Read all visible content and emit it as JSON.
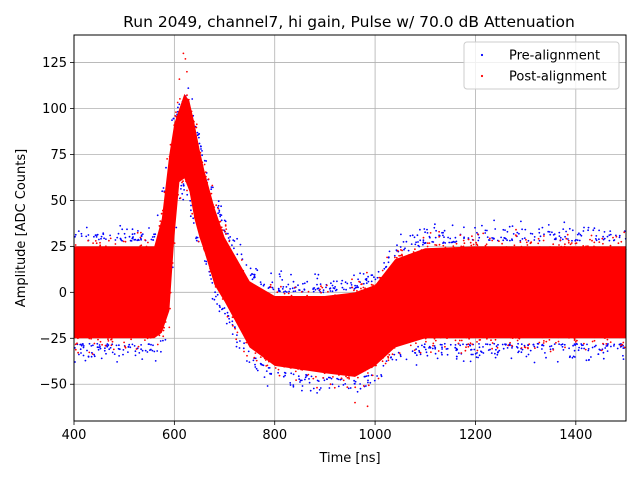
{
  "chart_data": {
    "type": "scatter",
    "title": "Run 2049, channel7, hi gain, Pulse w/ 70.0 dB Attenuation",
    "xlabel": "Time [ns]",
    "ylabel": "Amplitude [ADC Counts]",
    "xlim": [
      400,
      1500
    ],
    "ylim": [
      -70,
      140
    ],
    "xticks": [
      400,
      600,
      800,
      1000,
      1200,
      1400
    ],
    "yticks": [
      -50,
      -25,
      0,
      25,
      50,
      75,
      100,
      125
    ],
    "grid": true,
    "legend_position": "top-right",
    "series": [
      {
        "name": "Pre-alignment",
        "color": "#0000ff",
        "marker": "dot",
        "envelope": {
          "x": [
            400,
            560,
            575,
            590,
            600,
            610,
            620,
            630,
            640,
            650,
            660,
            680,
            700,
            750,
            800,
            900,
            960,
            1000,
            1040,
            1100,
            1200,
            1300,
            1400,
            1500
          ],
          "upper": [
            30,
            30,
            45,
            80,
            95,
            102,
            108,
            106,
            95,
            82,
            70,
            50,
            35,
            10,
            2,
            2,
            4,
            8,
            22,
            28,
            30,
            30,
            30,
            30
          ],
          "lower": [
            -30,
            -30,
            -28,
            -15,
            25,
            55,
            58,
            50,
            35,
            25,
            18,
            0,
            -10,
            -35,
            -45,
            -48,
            -50,
            -45,
            -35,
            -30,
            -30,
            -30,
            -30,
            -30
          ]
        }
      },
      {
        "name": "Post-alignment",
        "color": "#ff0000",
        "marker": "dot",
        "envelope": {
          "x": [
            400,
            560,
            575,
            590,
            600,
            610,
            620,
            630,
            640,
            650,
            660,
            680,
            700,
            750,
            800,
            900,
            960,
            1000,
            1040,
            1100,
            1200,
            1300,
            1400,
            1500
          ],
          "upper": [
            25,
            25,
            40,
            75,
            92,
            100,
            108,
            104,
            92,
            78,
            66,
            46,
            30,
            6,
            -2,
            -2,
            0,
            4,
            18,
            24,
            25,
            25,
            25,
            25
          ],
          "lower": [
            -25,
            -25,
            -22,
            -10,
            30,
            60,
            62,
            55,
            40,
            30,
            22,
            4,
            -5,
            -30,
            -40,
            -44,
            -46,
            -40,
            -30,
            -25,
            -25,
            -25,
            -25,
            -25
          ]
        }
      }
    ]
  }
}
